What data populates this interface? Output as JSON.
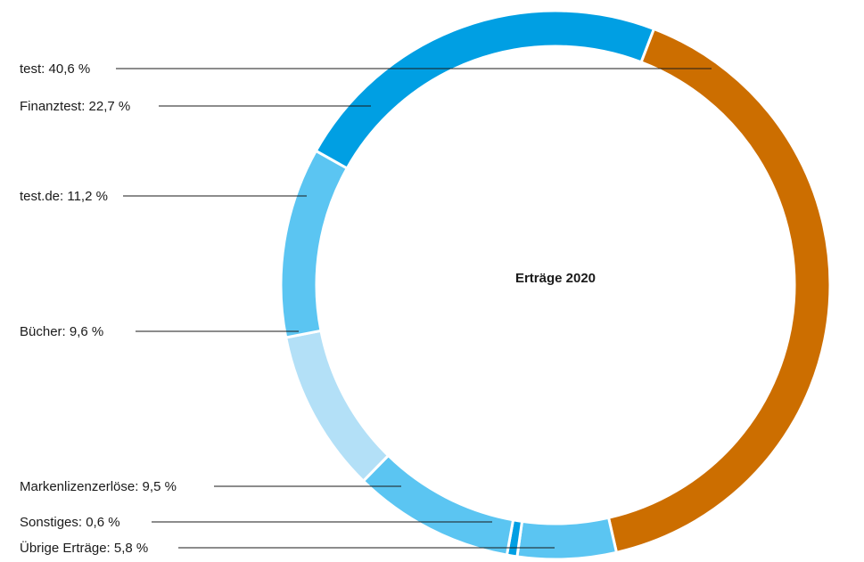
{
  "chart_data": {
    "type": "pie",
    "title": "Erträge 2020",
    "slices": [
      {
        "label": "test: 40,6 %",
        "value": 40.6,
        "color": "#cc6e00"
      },
      {
        "label": "Übrige Erträge: 5,8 %",
        "value": 5.8,
        "color": "#5bc5f2"
      },
      {
        "label": "Sonstiges: 0,6 %",
        "value": 0.6,
        "color": "#009fe3"
      },
      {
        "label": "Markenlizenzerlöse: 9,5 %",
        "value": 9.5,
        "color": "#5bc5f2"
      },
      {
        "label": "Bücher: 9,6 %",
        "value": 9.6,
        "color": "#b3e0f7"
      },
      {
        "label": "test.de: 11,2 %",
        "value": 11.2,
        "color": "#5bc5f2"
      },
      {
        "label": "Finanztest: 22,7 %",
        "value": 22.7,
        "color": "#009fe3"
      }
    ]
  }
}
